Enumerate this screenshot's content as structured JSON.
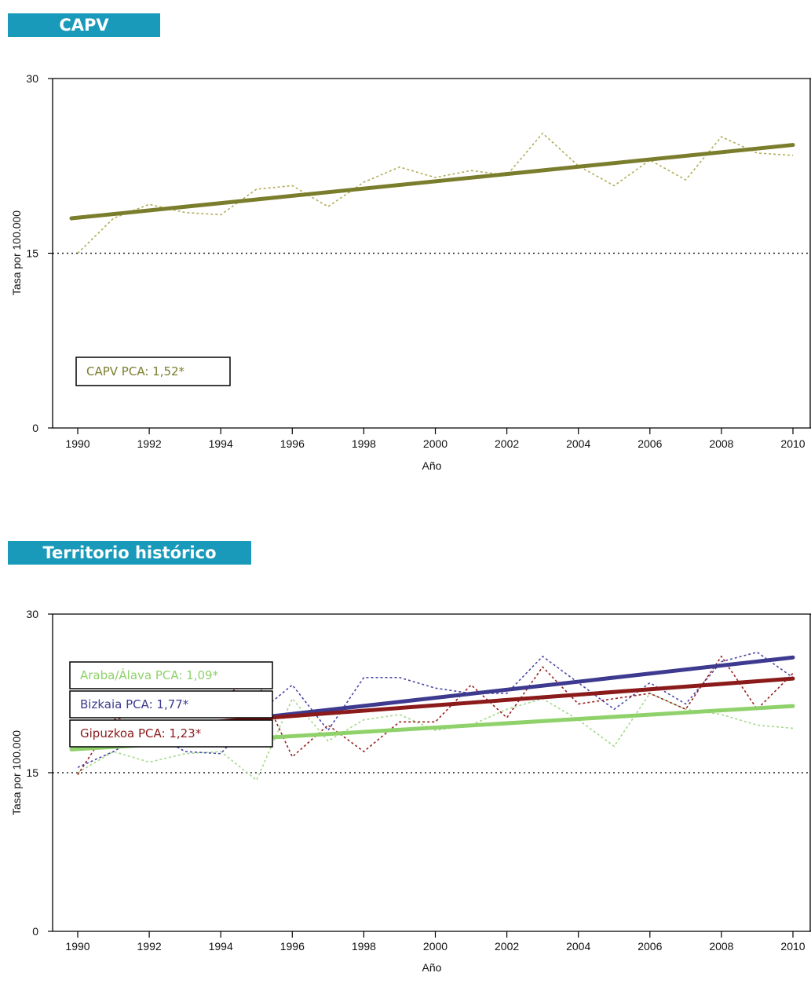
{
  "sections": [
    {
      "title": "CAPV",
      "color": "#1a9aba"
    },
    {
      "title": "Territorio histórico",
      "color": "#1a9aba"
    }
  ],
  "chart_data": [
    {
      "type": "line",
      "xlabel": "Año",
      "ylabel": "Tasa por 100.000",
      "ylim": [
        0,
        30
      ],
      "yticks": [
        0,
        15,
        30
      ],
      "xlim": [
        1990,
        2010
      ],
      "xticks": [
        1990,
        1992,
        1994,
        1996,
        1998,
        2000,
        2002,
        2004,
        2006,
        2008,
        2010
      ],
      "reference_line": {
        "y": 15,
        "style": "dotted"
      },
      "x": [
        1990,
        1991,
        1992,
        1993,
        1994,
        1995,
        1996,
        1997,
        1998,
        1999,
        2000,
        2001,
        2002,
        2003,
        2004,
        2005,
        2006,
        2007,
        2008,
        2009,
        2010
      ],
      "series": [
        {
          "region": "CAPV",
          "color": "#7a7d2c",
          "observed_color": "#b3ad5a",
          "observed": [
            15.0,
            18.0,
            19.2,
            18.5,
            18.3,
            20.5,
            20.8,
            19.0,
            21.1,
            22.4,
            21.5,
            22.1,
            21.7,
            25.3,
            22.5,
            20.8,
            23.0,
            21.3,
            25.0,
            23.6,
            23.4
          ],
          "trend_start": 18.0,
          "trend_end": 24.3,
          "legend": "CAPV PCA: 1,52*"
        }
      ],
      "legend_placement": "bottom-left"
    },
    {
      "type": "line",
      "xlabel": "Año",
      "ylabel": "Tasa por 100.000",
      "ylim": [
        0,
        30
      ],
      "yticks": [
        0,
        15,
        30
      ],
      "xlim": [
        1990,
        2010
      ],
      "xticks": [
        1990,
        1992,
        1994,
        1996,
        1998,
        2000,
        2002,
        2004,
        2006,
        2008,
        2010
      ],
      "reference_line": {
        "y": 15,
        "style": "dotted"
      },
      "x": [
        1990,
        1991,
        1992,
        1993,
        1994,
        1995,
        1996,
        1997,
        1998,
        1999,
        2000,
        2001,
        2002,
        2003,
        2004,
        2005,
        2006,
        2007,
        2008,
        2009,
        2010
      ],
      "series": [
        {
          "region": "Araba/Álava",
          "color": "#8fd16a",
          "observed_color": "#a5d98a",
          "observed": [
            15.0,
            17.0,
            16.0,
            16.8,
            17.0,
            14.3,
            22.0,
            18.0,
            20.0,
            20.5,
            19.0,
            19.5,
            21.0,
            22.0,
            20.0,
            17.5,
            22.5,
            21.0,
            20.5,
            19.5,
            19.2
          ],
          "trend_start": 17.2,
          "trend_end": 21.3,
          "legend": "Araba/Álava PCA: 1,09*"
        },
        {
          "region": "Bizkaia",
          "color": "#3d3a8f",
          "observed_color": "#4a48a8",
          "observed": [
            15.5,
            17.0,
            19.0,
            17.0,
            16.8,
            20.5,
            23.3,
            19.0,
            24.0,
            24.0,
            23.0,
            22.5,
            22.5,
            26.0,
            23.5,
            21.0,
            23.5,
            21.5,
            25.5,
            26.4,
            24.0
          ],
          "trend_start": 18.2,
          "trend_end": 25.9,
          "legend": "Bizkaia PCA: 1,77*"
        },
        {
          "region": "Gipuzkoa",
          "color": "#8b1a1a",
          "observed_color": "#9a2020",
          "observed": [
            14.8,
            20.0,
            20.8,
            21.5,
            22.2,
            23.8,
            16.5,
            19.5,
            17.0,
            19.8,
            19.8,
            23.3,
            20.2,
            25.0,
            21.5,
            22.0,
            22.5,
            21.0,
            26.0,
            21.0,
            24.4
          ],
          "trend_start": 18.8,
          "trend_end": 23.9,
          "legend": "Gipuzkoa PCA: 1,23*"
        }
      ],
      "legend_placement": "bottom-left"
    }
  ]
}
